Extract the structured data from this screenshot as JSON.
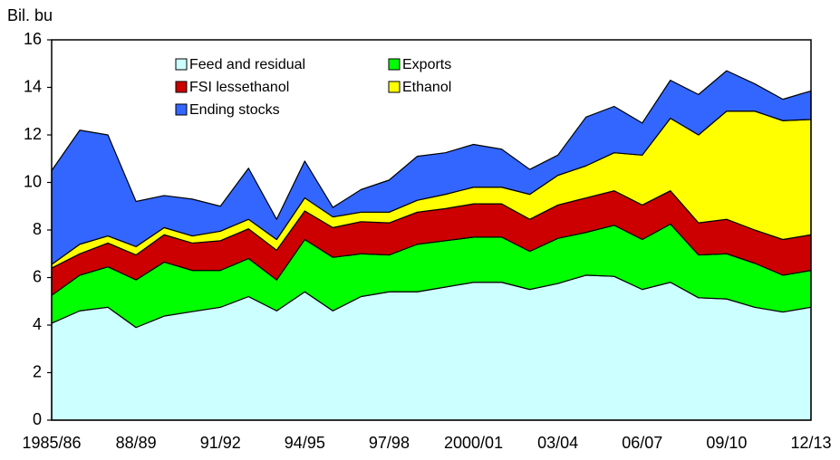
{
  "chart_data": {
    "type": "stacked_area",
    "y_label": "Bil. bu",
    "categories": [
      "1985/86",
      null,
      null,
      "88/89",
      null,
      null,
      "91/92",
      null,
      null,
      "94/95",
      null,
      null,
      "97/98",
      null,
      null,
      "2000/01",
      null,
      null,
      "03/04",
      null,
      null,
      "06/07",
      null,
      null,
      "09/10",
      null,
      null,
      "12/13"
    ],
    "ylim": [
      0,
      16
    ],
    "yticks": [
      0,
      2,
      4,
      6,
      8,
      10,
      12,
      14,
      16
    ],
    "grid": false,
    "series": [
      {
        "name": "Feed and residual",
        "color": "#ccffff",
        "values": [
          4.08,
          4.6,
          4.75,
          3.9,
          4.38,
          4.57,
          4.75,
          5.2,
          4.6,
          5.4,
          4.6,
          5.2,
          5.4,
          5.4,
          5.6,
          5.8,
          5.8,
          5.5,
          5.75,
          6.1,
          6.05,
          5.5,
          5.8,
          5.15,
          5.1,
          4.75,
          4.55,
          4.75
        ]
      },
      {
        "name": "Exports",
        "color": "#00ff00",
        "values": [
          1.17,
          1.5,
          1.7,
          2.0,
          2.27,
          1.73,
          1.55,
          1.6,
          1.3,
          2.2,
          2.25,
          1.8,
          1.55,
          2.0,
          1.95,
          1.9,
          1.9,
          1.6,
          1.9,
          1.8,
          2.15,
          2.1,
          2.45,
          1.8,
          1.9,
          1.85,
          1.55,
          1.55
        ]
      },
      {
        "name": "FSI lessethanol",
        "color": "#cc0000",
        "values": [
          1.15,
          0.9,
          1.0,
          1.05,
          1.15,
          1.15,
          1.25,
          1.25,
          1.25,
          1.2,
          1.25,
          1.35,
          1.35,
          1.35,
          1.35,
          1.4,
          1.4,
          1.35,
          1.4,
          1.45,
          1.45,
          1.45,
          1.4,
          1.35,
          1.45,
          1.4,
          1.5,
          1.5
        ]
      },
      {
        "name": "Ethanol",
        "color": "#ffff00",
        "values": [
          0.15,
          0.4,
          0.3,
          0.35,
          0.3,
          0.3,
          0.4,
          0.4,
          0.45,
          0.55,
          0.45,
          0.4,
          0.45,
          0.5,
          0.6,
          0.7,
          0.7,
          1.05,
          1.25,
          1.35,
          1.6,
          2.1,
          3.05,
          3.7,
          4.55,
          5.0,
          5.0,
          4.85
        ]
      },
      {
        "name": "Ending stocks",
        "color": "#3366ff",
        "values": [
          3.95,
          4.8,
          4.25,
          1.9,
          1.35,
          1.55,
          1.05,
          2.15,
          0.85,
          1.55,
          0.4,
          0.95,
          1.35,
          1.85,
          1.75,
          1.8,
          1.6,
          1.05,
          0.85,
          2.05,
          1.95,
          1.35,
          1.6,
          1.7,
          1.7,
          1.15,
          0.9,
          1.2
        ]
      }
    ]
  }
}
